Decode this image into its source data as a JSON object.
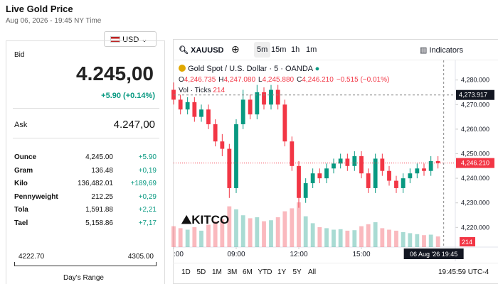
{
  "header": {
    "title": "Live Gold Price",
    "date": "Aug 06, 2026 - 19:45 NY Time",
    "currency": "USD"
  },
  "quote": {
    "bid_label": "Bid",
    "bid": "4.245,00",
    "change": "+5.90 (+0.14%)",
    "ask_label": "Ask",
    "ask": "4.247,00",
    "rows": [
      [
        "Ounce",
        "4,245.00",
        "+5.90"
      ],
      [
        "Gram",
        "136.48",
        "+0,19"
      ],
      [
        "Kilo",
        "136,482.01",
        "+189,69"
      ],
      [
        "Pennyweight",
        "212.25",
        "+0,29"
      ],
      [
        "Tola",
        "1,591.88",
        "+2,21"
      ],
      [
        "Tael",
        "5,158.86",
        "+7,17"
      ]
    ],
    "range_low": "4222.70",
    "range_high": "4305.00",
    "range_label": "Day's Range"
  },
  "toolbar": {
    "symbol": "XAUUSD",
    "intervals": [
      "5m",
      "15m",
      "1h",
      "1m"
    ],
    "indicators": "Indicators"
  },
  "legend": {
    "name": "Gold Spot / U.S. Dollar · 5 · OANDA",
    "ohlc": [
      [
        "O",
        "4,246.735"
      ],
      [
        "H",
        "4,247.080"
      ],
      [
        "L",
        "4,245.880"
      ],
      [
        "C",
        "4,246.210"
      ]
    ],
    "change": "−0.515 (−0.01%)",
    "volume": "Vol · Ticks"
  },
  "ranges": [
    "1D",
    "5D",
    "1M",
    "3M",
    "6M",
    "YTD",
    "1Y",
    "5Y",
    "All"
  ],
  "clock": "19:45:59 UTC-4",
  "cursor_time": "06 Aug '26  19:45",
  "logo": "KITCO",
  "chart_data": {
    "type": "candlestick",
    "up_color": "#089981",
    "down_color": "#f23645",
    "xlim": [
      6,
      19.5
    ],
    "xticks": [
      {
        "value": 6,
        "label": ":00"
      },
      {
        "value": 9,
        "label": "09:00"
      },
      {
        "value": 12,
        "label": "12:00"
      },
      {
        "value": 15,
        "label": "15:00"
      }
    ],
    "ylim": [
      4212,
      4288
    ],
    "yticks": [
      {
        "value": 4280,
        "label": "4,280.000"
      },
      {
        "value": 4270,
        "label": "4,270.000"
      },
      {
        "value": 4260,
        "label": "4,260.000"
      },
      {
        "value": 4250,
        "label": "4,250.000"
      },
      {
        "value": 4240,
        "label": "4,240.000"
      },
      {
        "value": 4230,
        "label": "4,230.000"
      },
      {
        "value": 4220,
        "label": "4,220.000"
      }
    ],
    "volume_lim": [
      0,
      1000
    ],
    "crosshair_price": {
      "value": 4273.917,
      "label": "4,273.917"
    },
    "last_price": {
      "value": 4246.21,
      "label": "4,246.210"
    },
    "last_volume": 214,
    "candles": [
      {
        "x": 6.0,
        "open": 4276,
        "high": 4279,
        "low": 4270,
        "close": 4272,
        "volume": 420
      },
      {
        "x": 6.33,
        "open": 4272,
        "high": 4274,
        "low": 4266,
        "close": 4268,
        "volume": 380
      },
      {
        "x": 6.67,
        "open": 4268,
        "high": 4273,
        "low": 4266,
        "close": 4271,
        "volume": 350
      },
      {
        "x": 7.0,
        "open": 4271,
        "high": 4273,
        "low": 4263,
        "close": 4265,
        "volume": 400
      },
      {
        "x": 7.33,
        "open": 4265,
        "high": 4270,
        "low": 4263,
        "close": 4268,
        "volume": 330
      },
      {
        "x": 7.67,
        "open": 4268,
        "high": 4270,
        "low": 4260,
        "close": 4262,
        "volume": 450
      },
      {
        "x": 8.0,
        "open": 4262,
        "high": 4264,
        "low": 4253,
        "close": 4255,
        "volume": 520
      },
      {
        "x": 8.33,
        "open": 4255,
        "high": 4258,
        "low": 4249,
        "close": 4252,
        "volume": 560
      },
      {
        "x": 8.67,
        "open": 4252,
        "high": 4254,
        "low": 4232,
        "close": 4236,
        "volume": 820
      },
      {
        "x": 9.0,
        "open": 4236,
        "high": 4264,
        "low": 4234,
        "close": 4262,
        "volume": 760
      },
      {
        "x": 9.33,
        "open": 4262,
        "high": 4276,
        "low": 4260,
        "close": 4272,
        "volume": 640
      },
      {
        "x": 9.67,
        "open": 4272,
        "high": 4274,
        "low": 4264,
        "close": 4266,
        "volume": 580
      },
      {
        "x": 10.0,
        "open": 4266,
        "high": 4278,
        "low": 4264,
        "close": 4275,
        "volume": 600
      },
      {
        "x": 10.33,
        "open": 4275,
        "high": 4277,
        "low": 4268,
        "close": 4270,
        "volume": 520
      },
      {
        "x": 10.67,
        "open": 4270,
        "high": 4278,
        "low": 4268,
        "close": 4276,
        "volume": 540
      },
      {
        "x": 11.0,
        "open": 4276,
        "high": 4278,
        "low": 4268,
        "close": 4270,
        "volume": 600
      },
      {
        "x": 11.33,
        "open": 4270,
        "high": 4272,
        "low": 4253,
        "close": 4255,
        "volume": 720
      },
      {
        "x": 11.67,
        "open": 4255,
        "high": 4257,
        "low": 4243,
        "close": 4245,
        "volume": 780
      },
      {
        "x": 12.0,
        "open": 4245,
        "high": 4247,
        "low": 4228,
        "close": 4232,
        "volume": 900
      },
      {
        "x": 12.33,
        "open": 4232,
        "high": 4240,
        "low": 4230,
        "close": 4238,
        "volume": 620
      },
      {
        "x": 12.67,
        "open": 4238,
        "high": 4244,
        "low": 4236,
        "close": 4242,
        "volume": 480
      },
      {
        "x": 13.0,
        "open": 4242,
        "high": 4244,
        "low": 4238,
        "close": 4240,
        "volume": 400
      },
      {
        "x": 13.33,
        "open": 4240,
        "high": 4246,
        "low": 4238,
        "close": 4244,
        "volume": 380
      },
      {
        "x": 13.67,
        "open": 4244,
        "high": 4248,
        "low": 4242,
        "close": 4246,
        "volume": 350
      },
      {
        "x": 14.0,
        "open": 4246,
        "high": 4250,
        "low": 4244,
        "close": 4248,
        "volume": 360
      },
      {
        "x": 14.33,
        "open": 4248,
        "high": 4250,
        "low": 4243,
        "close": 4245,
        "volume": 330
      },
      {
        "x": 14.67,
        "open": 4245,
        "high": 4251,
        "low": 4243,
        "close": 4249,
        "volume": 340
      },
      {
        "x": 15.0,
        "open": 4249,
        "high": 4251,
        "low": 4240,
        "close": 4242,
        "volume": 420
      },
      {
        "x": 15.33,
        "open": 4242,
        "high": 4244,
        "low": 4234,
        "close": 4236,
        "volume": 460
      },
      {
        "x": 15.67,
        "open": 4236,
        "high": 4250,
        "low": 4234,
        "close": 4248,
        "volume": 500
      },
      {
        "x": 16.0,
        "open": 4248,
        "high": 4250,
        "low": 4241,
        "close": 4243,
        "volume": 380
      },
      {
        "x": 16.33,
        "open": 4243,
        "high": 4245,
        "low": 4237,
        "close": 4239,
        "volume": 350
      },
      {
        "x": 16.67,
        "open": 4239,
        "high": 4241,
        "low": 4234,
        "close": 4236,
        "volume": 330
      },
      {
        "x": 17.0,
        "open": 4236,
        "high": 4242,
        "low": 4234,
        "close": 4240,
        "volume": 300
      },
      {
        "x": 17.33,
        "open": 4240,
        "high": 4244,
        "low": 4238,
        "close": 4242,
        "volume": 280
      },
      {
        "x": 17.67,
        "open": 4242,
        "high": 4246,
        "low": 4240,
        "close": 4244,
        "volume": 260
      },
      {
        "x": 18.0,
        "open": 4244,
        "high": 4246,
        "low": 4241,
        "close": 4243,
        "volume": 240
      },
      {
        "x": 18.33,
        "open": 4243,
        "high": 4249,
        "low": 4241,
        "close": 4247,
        "volume": 250
      },
      {
        "x": 18.67,
        "open": 4247,
        "high": 4249,
        "low": 4244,
        "close": 4246.21,
        "volume": 214
      }
    ]
  }
}
